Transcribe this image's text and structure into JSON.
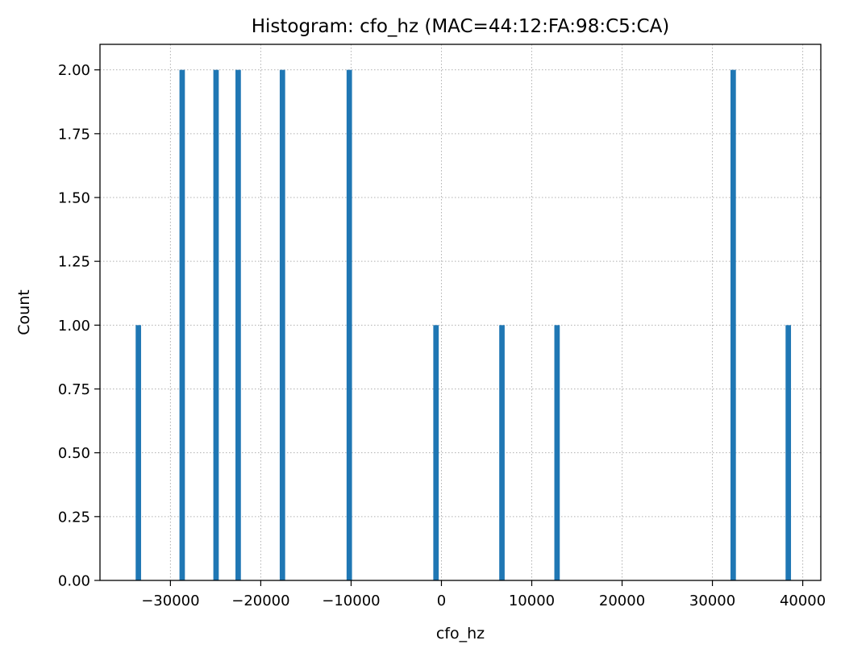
{
  "chart_data": {
    "type": "bar",
    "title": "Histogram: cfo_hz (MAC=44:12:FA:98:C5:CA)",
    "xlabel": "cfo_hz",
    "ylabel": "Count",
    "xlim": [
      -37800,
      42000
    ],
    "ylim": [
      0,
      2.1
    ],
    "grid": true,
    "bar_width": 600,
    "bar_color": "#1f77b4",
    "grid_color": "#b0b0b0",
    "x_ticks": [
      {
        "value": -30000,
        "label": "−30000"
      },
      {
        "value": -20000,
        "label": "−20000"
      },
      {
        "value": -10000,
        "label": "−10000"
      },
      {
        "value": 0,
        "label": "0"
      },
      {
        "value": 10000,
        "label": "10000"
      },
      {
        "value": 20000,
        "label": "20000"
      },
      {
        "value": 30000,
        "label": "30000"
      },
      {
        "value": 40000,
        "label": "40000"
      }
    ],
    "y_ticks": [
      {
        "value": 0,
        "label": "0.00"
      },
      {
        "value": 0.25,
        "label": "0.25"
      },
      {
        "value": 0.5,
        "label": "0.50"
      },
      {
        "value": 0.75,
        "label": "0.75"
      },
      {
        "value": 1.0,
        "label": "1.00"
      },
      {
        "value": 1.25,
        "label": "1.25"
      },
      {
        "value": 1.5,
        "label": "1.50"
      },
      {
        "value": 1.75,
        "label": "1.75"
      },
      {
        "value": 2.0,
        "label": "2.00"
      }
    ],
    "bins": [
      {
        "center": -33550,
        "count": 1
      },
      {
        "center": -28700,
        "count": 2
      },
      {
        "center": -24950,
        "count": 2
      },
      {
        "center": -22500,
        "count": 2
      },
      {
        "center": -17600,
        "count": 2
      },
      {
        "center": -10200,
        "count": 2
      },
      {
        "center": -600,
        "count": 1
      },
      {
        "center": 6700,
        "count": 1
      },
      {
        "center": 12800,
        "count": 1
      },
      {
        "center": 32300,
        "count": 2
      },
      {
        "center": 38400,
        "count": 1
      }
    ]
  }
}
